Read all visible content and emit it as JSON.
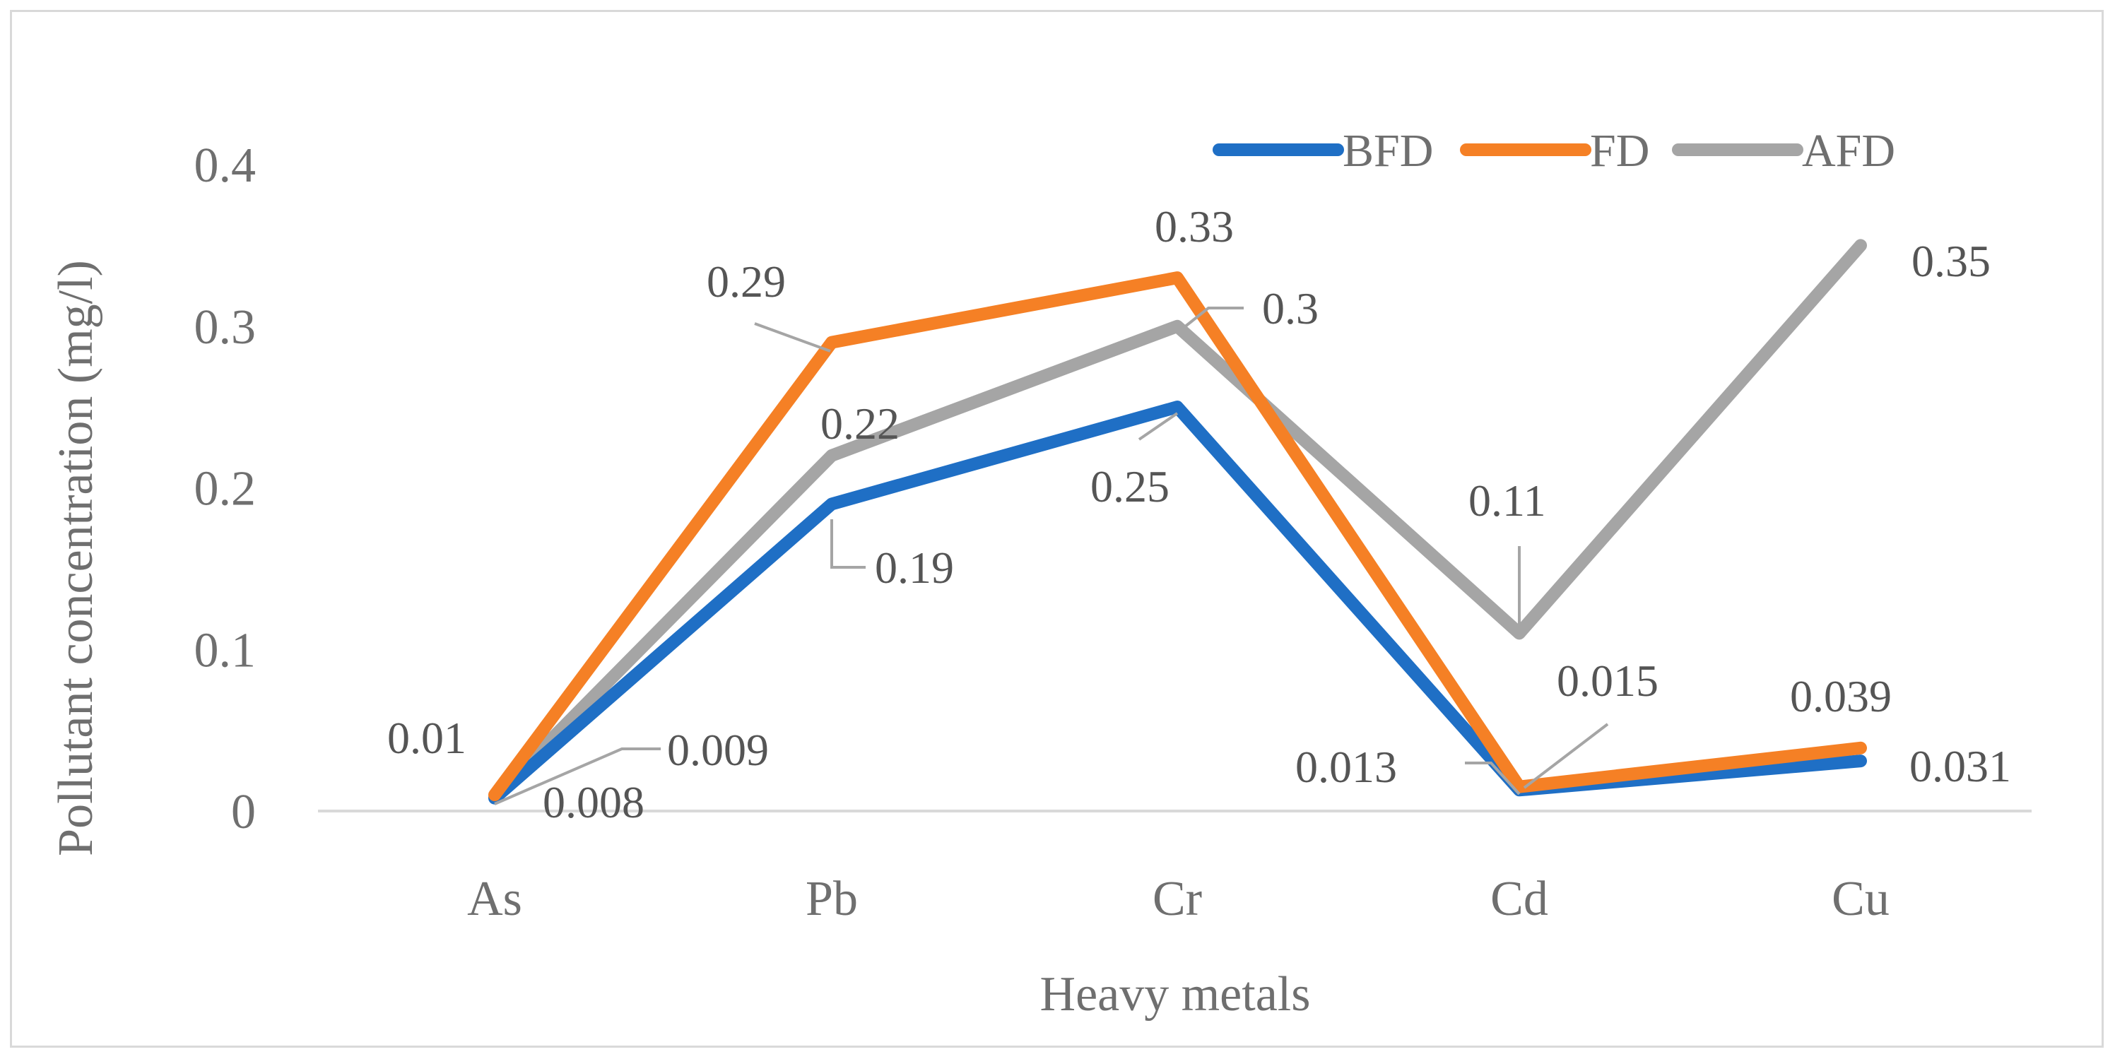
{
  "chart_data": {
    "type": "line",
    "title": "",
    "xlabel": "Heavy metals",
    "ylabel": "Pollutant concentration (mg/l)",
    "categories": [
      "As",
      "Pb",
      "Cr",
      "Cd",
      "Cu"
    ],
    "ylim": [
      0,
      0.4
    ],
    "yticks": [
      0,
      0.1,
      0.2,
      0.3,
      0.4
    ],
    "ytick_labels": [
      "0",
      "0.1",
      "0.2",
      "0.3",
      "0.4"
    ],
    "grid": false,
    "legend_position": "top-right",
    "series": [
      {
        "name": "BFD",
        "color": "#1f6fc5",
        "values": [
          0.008,
          0.19,
          0.25,
          0.013,
          0.031
        ],
        "labels": [
          "0.008",
          "0.19",
          "0.25",
          "0.013",
          "0.031"
        ]
      },
      {
        "name": "FD",
        "color": "#f58025",
        "values": [
          0.01,
          0.29,
          0.33,
          0.015,
          0.039
        ],
        "labels": [
          "0.01",
          "0.29",
          "0.33",
          "",
          "0.039"
        ]
      },
      {
        "name": "AFD",
        "color": "#a5a5a5",
        "values": [
          0.009,
          0.22,
          0.3,
          0.11,
          0.35
        ],
        "labels": [
          "0.009",
          "0.22",
          "0.3",
          "0.11",
          "0.35"
        ]
      }
    ],
    "extra_labels": [
      "0.015"
    ]
  }
}
